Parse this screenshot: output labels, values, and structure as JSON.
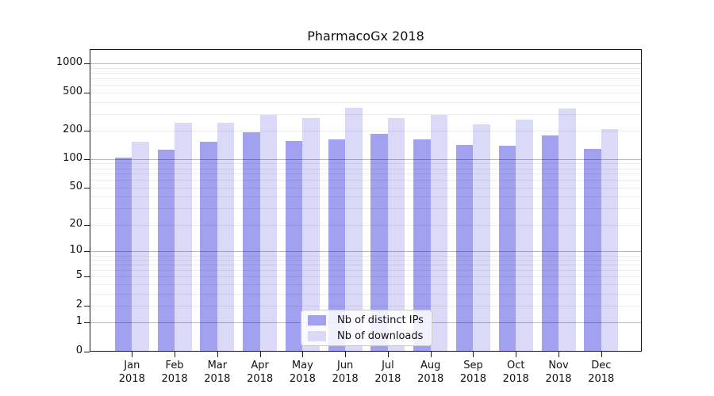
{
  "title": "PharmacoGx 2018",
  "legend": {
    "items": [
      {
        "label": "Nb of distinct IPs",
        "color": "#a1a1f0"
      },
      {
        "label": "Nb of downloads",
        "color": "#dadaf8"
      }
    ]
  },
  "chart_data": {
    "type": "bar",
    "title": "PharmacoGx 2018",
    "categories": [
      "Jan 2018",
      "Feb 2018",
      "Mar 2018",
      "Apr 2018",
      "May 2018",
      "Jun 2018",
      "Jul 2018",
      "Aug 2018",
      "Sep 2018",
      "Oct 2018",
      "Nov 2018",
      "Dec 2018"
    ],
    "x_tick_months": [
      "Jan",
      "Feb",
      "Mar",
      "Apr",
      "May",
      "Jun",
      "Jul",
      "Aug",
      "Sep",
      "Oct",
      "Nov",
      "Dec"
    ],
    "x_tick_year": "2018",
    "series": [
      {
        "name": "Nb of distinct IPs",
        "color": "#a1a1f0",
        "values": [
          103,
          124,
          152,
          191,
          154,
          159,
          183,
          159,
          140,
          137,
          175,
          127
        ]
      },
      {
        "name": "Nb of downloads",
        "color": "#dadaf8",
        "values": [
          150,
          241,
          238,
          288,
          268,
          346,
          266,
          291,
          232,
          260,
          336,
          205
        ]
      }
    ],
    "yaxis": {
      "scale": "log10(1+v)",
      "ticks": [
        0,
        1,
        2,
        5,
        10,
        20,
        50,
        100,
        200,
        500,
        1000
      ],
      "major_gridlines": [
        1,
        10,
        100,
        1000
      ],
      "minor_gridlines": [
        2,
        3,
        4,
        5,
        6,
        7,
        8,
        9,
        20,
        30,
        40,
        50,
        60,
        70,
        80,
        90,
        200,
        300,
        400,
        500,
        600,
        700,
        800,
        900
      ],
      "ylim": [
        0,
        1420
      ]
    },
    "grid": true,
    "legend_position": "bottom-center"
  }
}
